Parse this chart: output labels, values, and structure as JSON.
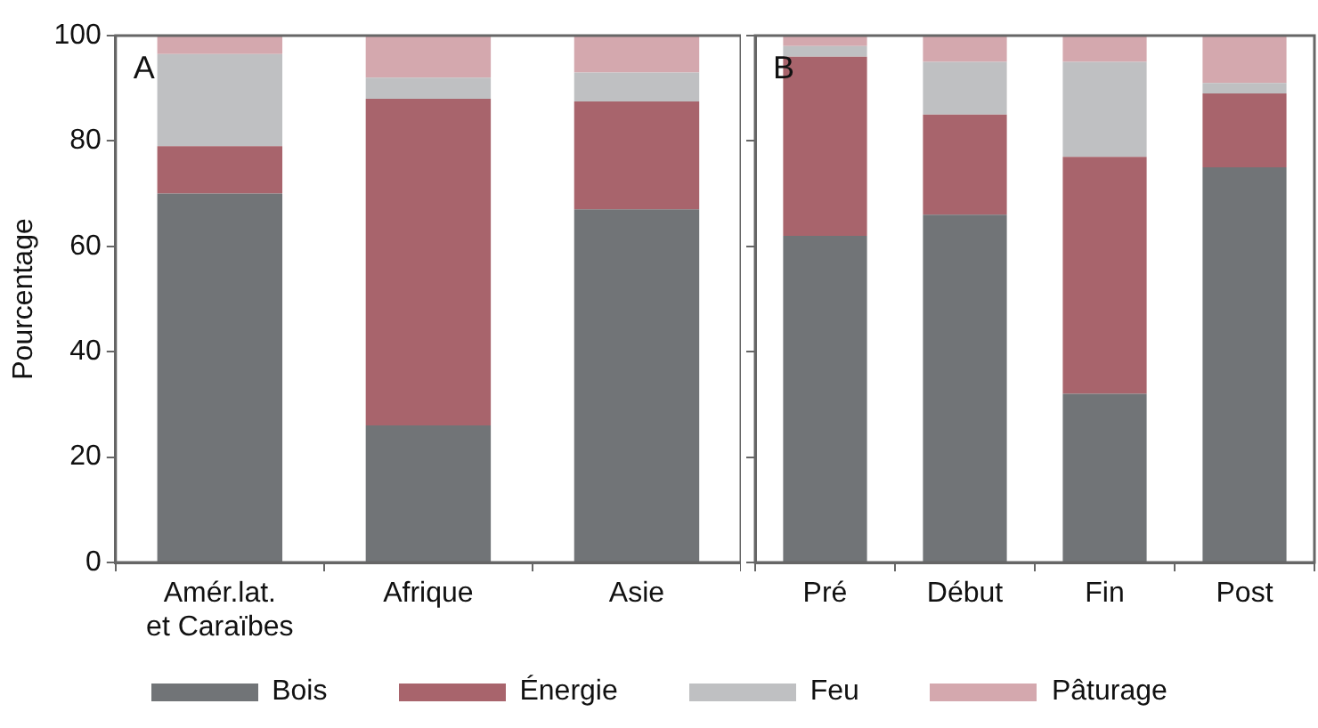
{
  "chart_data": [
    {
      "type": "bar",
      "stacked": true,
      "ylabel": "Pourcentage",
      "annotations": [
        "A"
      ],
      "legend": "bottom",
      "categories": [
        "Amér.lat.\net Caraïbes",
        "Afrique",
        "Asie"
      ],
      "ylim": [
        0,
        100
      ],
      "yticks": [
        0,
        20,
        40,
        60,
        80,
        100
      ],
      "grid": false,
      "series": [
        {
          "name": "Bois",
          "color": "#717477",
          "values": [
            70,
            26,
            67
          ]
        },
        {
          "name": "Énergie",
          "color": "#a8646c",
          "values": [
            9,
            62,
            20.5
          ]
        },
        {
          "name": "Feu",
          "color": "#bfc0c2",
          "values": [
            17.5,
            4,
            5.5
          ]
        },
        {
          "name": "Pâturage",
          "color": "#d4a8ae",
          "values": [
            3.5,
            8,
            7
          ]
        }
      ]
    },
    {
      "type": "bar",
      "stacked": true,
      "annotations": [
        "B"
      ],
      "categories": [
        "Pré",
        "Début",
        "Fin",
        "Post"
      ],
      "ylim": [
        0,
        100
      ],
      "yticks": [
        0,
        20,
        40,
        60,
        80,
        100
      ],
      "tick_labels": "x",
      "grid": false,
      "series": [
        {
          "color": "#717477",
          "values": [
            62,
            66,
            32,
            75
          ]
        },
        {
          "color": "#a8646c",
          "values": [
            34,
            19,
            45,
            14
          ]
        },
        {
          "color": "#bfc0c2",
          "values": [
            2,
            10,
            18,
            2
          ]
        },
        {
          "color": "#d4a8ae",
          "values": [
            2,
            5,
            5,
            9
          ]
        }
      ]
    }
  ]
}
